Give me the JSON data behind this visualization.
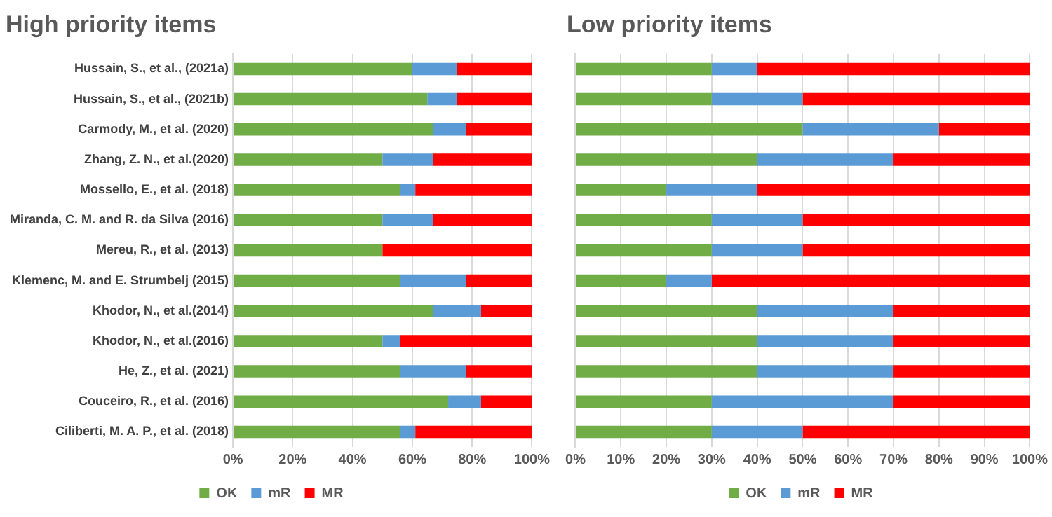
{
  "chart_data": [
    {
      "type": "bar",
      "orientation": "horizontal",
      "stacked": true,
      "title": "High priority items",
      "categories": [
        "Hussain, S., et al., (2021a)",
        "Hussain, S., et al., (2021b)",
        "Carmody, M., et al. (2020)",
        "Zhang, Z. N., et al.(2020)",
        "Mossello, E., et al. (2018)",
        "Miranda, C. M. and R. da Silva (2016)",
        "Mereu, R., et al. (2013)",
        "Klemenc, M. and E. Strumbelj (2015)",
        "Khodor, N., et al.(2014)",
        "Khodor, N., et al.(2016)",
        "He, Z., et al. (2021)",
        "Couceiro, R., et al. (2016)",
        "Ciliberti, M. A. P., et al. (2018)"
      ],
      "series": [
        {
          "name": "OK",
          "color": "#70ad47",
          "values": [
            60,
            65,
            67,
            50,
            56,
            50,
            50,
            56,
            67,
            50,
            56,
            72,
            56
          ]
        },
        {
          "name": "mR",
          "color": "#5b9bd5",
          "values": [
            15,
            10,
            11,
            17,
            5,
            17,
            0,
            22,
            16,
            6,
            22,
            11,
            5
          ]
        },
        {
          "name": "MR",
          "color": "#ff0000",
          "values": [
            25,
            25,
            22,
            33,
            39,
            33,
            50,
            22,
            17,
            44,
            22,
            17,
            39
          ]
        }
      ],
      "xlim": [
        0,
        100
      ],
      "xticks": [
        {
          "value": 0,
          "label": "0%"
        },
        {
          "value": 20,
          "label": "20%"
        },
        {
          "value": 40,
          "label": "40%"
        },
        {
          "value": 60,
          "label": "60%"
        },
        {
          "value": 80,
          "label": "80%"
        },
        {
          "value": 100,
          "label": "100%"
        }
      ],
      "grid": "x",
      "legend": "bottom"
    },
    {
      "type": "bar",
      "orientation": "horizontal",
      "stacked": true,
      "title": "Low priority items",
      "categories": [
        null,
        null,
        null,
        null,
        null,
        null,
        null,
        null,
        null,
        null,
        null,
        null,
        null
      ],
      "series": [
        {
          "name": "OK",
          "color": "#70ad47",
          "values": [
            30,
            30,
            50,
            40,
            20,
            30,
            30,
            20,
            40,
            40,
            40,
            30,
            30
          ]
        },
        {
          "name": "mR",
          "color": "#5b9bd5",
          "values": [
            10,
            20,
            30,
            30,
            20,
            20,
            20,
            10,
            30,
            30,
            30,
            40,
            20
          ]
        },
        {
          "name": "MR",
          "color": "#ff0000",
          "values": [
            60,
            50,
            20,
            30,
            60,
            50,
            50,
            70,
            30,
            30,
            30,
            30,
            50
          ]
        }
      ],
      "xlim": [
        0,
        100
      ],
      "xticks": [
        {
          "value": 0,
          "label": "0%"
        },
        {
          "value": 10,
          "label": "10%"
        },
        {
          "value": 20,
          "label": "20%"
        },
        {
          "value": 30,
          "label": "30%"
        },
        {
          "value": 40,
          "label": "40%"
        },
        {
          "value": 50,
          "label": "50%"
        },
        {
          "value": 60,
          "label": "60%"
        },
        {
          "value": 70,
          "label": "70%"
        },
        {
          "value": 80,
          "label": "80%"
        },
        {
          "value": 90,
          "label": "90%"
        },
        {
          "value": 100,
          "label": "100%"
        }
      ],
      "grid": "x",
      "legend": "bottom",
      "tick_labels": "x"
    }
  ]
}
